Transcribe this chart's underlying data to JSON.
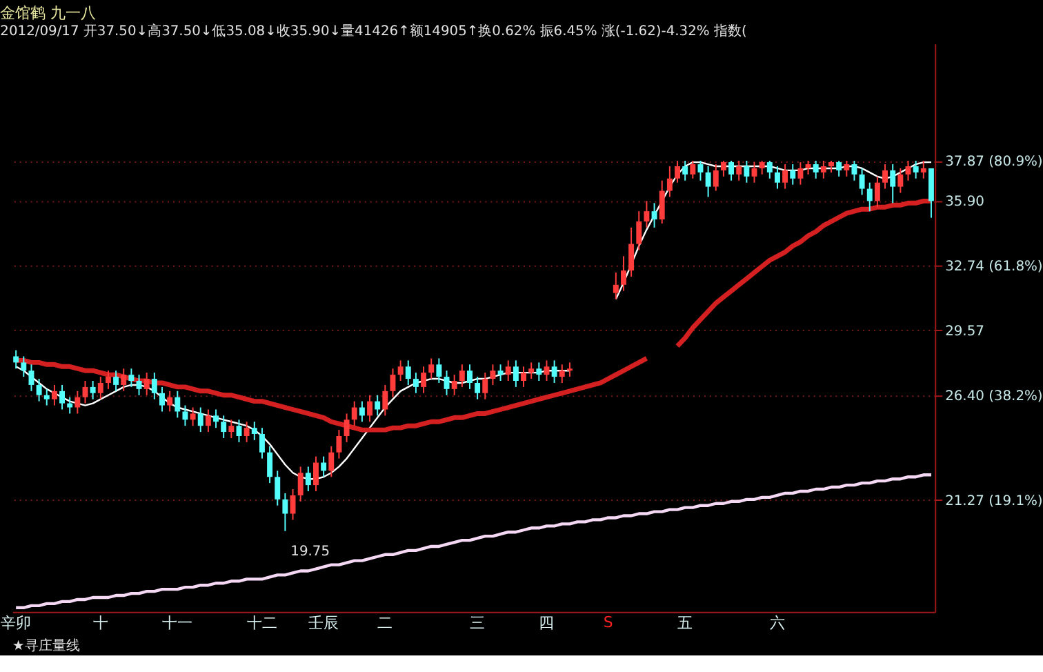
{
  "chart_data": {
    "type": "candlestick",
    "title": "金馆鹤 九一八",
    "subtitle": "2012/09/17 开37.50↓高37.50↓低35.08↓收35.90↓量41426↑额14905↑换0.62% 振6.45% 涨(-1.62)-4.32% 指数(",
    "categories": [
      "辛卯",
      null,
      null,
      null,
      null,
      null,
      null,
      null,
      null,
      null,
      null,
      "十",
      null,
      null,
      null,
      null,
      null,
      null,
      null,
      null,
      null,
      "十一",
      null,
      null,
      null,
      null,
      null,
      null,
      null,
      null,
      null,
      null,
      "十二",
      null,
      null,
      null,
      null,
      null,
      null,
      null,
      "壬辰",
      null,
      null,
      null,
      null,
      null,
      null,
      null,
      "二",
      null,
      null,
      null,
      null,
      null,
      null,
      null,
      null,
      null,
      null,
      null,
      "三",
      null,
      null,
      null,
      null,
      null,
      null,
      null,
      null,
      "四",
      null,
      null,
      null,
      null,
      null,
      null,
      null,
      null,
      null,
      null,
      null,
      null,
      null,
      null,
      null,
      null,
      null,
      "五",
      null,
      null,
      null,
      null,
      null,
      null,
      null,
      null,
      null,
      null,
      null,
      "六",
      null,
      null,
      null,
      null,
      null,
      null,
      null,
      null,
      null,
      null,
      null,
      null,
      null,
      null,
      null,
      null,
      null,
      null,
      null,
      null
    ],
    "ohlc": [
      [
        28.3,
        28.6,
        27.7,
        28.0
      ],
      [
        28.0,
        28.3,
        27.3,
        27.6
      ],
      [
        27.6,
        27.9,
        26.6,
        26.9
      ],
      [
        26.9,
        27.2,
        26.1,
        26.4
      ],
      [
        26.4,
        26.7,
        25.9,
        26.2
      ],
      [
        26.2,
        26.9,
        25.9,
        26.6
      ],
      [
        26.6,
        26.9,
        25.7,
        26.0
      ],
      [
        26.0,
        26.3,
        25.5,
        25.8
      ],
      [
        25.8,
        26.6,
        25.5,
        26.3
      ],
      [
        26.3,
        27.1,
        26.0,
        26.8
      ],
      [
        26.8,
        27.1,
        26.2,
        26.5
      ],
      [
        26.5,
        27.3,
        26.2,
        27.0
      ],
      [
        27.0,
        27.6,
        26.7,
        27.3
      ],
      [
        27.3,
        27.6,
        26.6,
        26.9
      ],
      [
        26.9,
        27.7,
        26.6,
        27.4
      ],
      [
        27.4,
        27.7,
        26.8,
        27.1
      ],
      [
        27.1,
        27.4,
        26.4,
        26.7
      ],
      [
        26.7,
        27.5,
        26.4,
        27.2
      ],
      [
        27.2,
        27.5,
        26.2,
        26.5
      ],
      [
        26.5,
        26.8,
        25.6,
        25.9
      ],
      [
        25.9,
        26.6,
        25.6,
        26.3
      ],
      [
        26.3,
        26.6,
        25.3,
        25.6
      ],
      [
        25.6,
        25.9,
        24.9,
        25.2
      ],
      [
        25.2,
        25.8,
        24.9,
        25.5
      ],
      [
        25.5,
        25.8,
        24.6,
        24.9
      ],
      [
        24.9,
        25.7,
        24.6,
        25.4
      ],
      [
        25.4,
        25.7,
        24.8,
        25.1
      ],
      [
        25.1,
        25.4,
        24.3,
        24.6
      ],
      [
        24.6,
        25.2,
        24.3,
        24.9
      ],
      [
        24.9,
        25.2,
        24.1,
        24.4
      ],
      [
        24.4,
        25.1,
        24.1,
        24.8
      ],
      [
        24.8,
        25.1,
        24.2,
        24.5
      ],
      [
        24.5,
        24.8,
        23.3,
        23.6
      ],
      [
        23.6,
        23.9,
        22.1,
        22.4
      ],
      [
        22.4,
        22.7,
        21.0,
        21.3
      ],
      [
        21.3,
        21.6,
        19.75,
        20.6
      ],
      [
        20.6,
        21.8,
        20.3,
        21.5
      ],
      [
        21.5,
        22.9,
        21.2,
        22.6
      ],
      [
        22.6,
        22.9,
        21.7,
        22.0
      ],
      [
        22.0,
        23.4,
        21.7,
        23.1
      ],
      [
        23.1,
        23.4,
        22.4,
        22.7
      ],
      [
        22.7,
        23.9,
        22.4,
        23.6
      ],
      [
        23.6,
        24.7,
        23.3,
        24.4
      ],
      [
        24.4,
        25.5,
        24.1,
        25.2
      ],
      [
        25.2,
        26.1,
        24.9,
        25.8
      ],
      [
        25.8,
        26.1,
        25.1,
        25.4
      ],
      [
        25.4,
        26.4,
        25.1,
        26.1
      ],
      [
        26.1,
        26.4,
        25.4,
        25.7
      ],
      [
        25.7,
        26.9,
        25.4,
        26.6
      ],
      [
        26.6,
        27.7,
        26.3,
        27.4
      ],
      [
        27.4,
        28.1,
        27.1,
        27.8
      ],
      [
        27.8,
        28.1,
        26.9,
        27.2
      ],
      [
        27.2,
        27.5,
        26.5,
        26.8
      ],
      [
        26.8,
        27.8,
        26.5,
        27.5
      ],
      [
        27.5,
        28.2,
        27.2,
        27.9
      ],
      [
        27.9,
        28.2,
        27.0,
        27.3
      ],
      [
        27.3,
        27.6,
        26.4,
        26.7
      ],
      [
        26.7,
        27.4,
        26.4,
        27.1
      ],
      [
        27.1,
        27.9,
        26.8,
        27.6
      ],
      [
        27.6,
        27.9,
        26.7,
        27.0
      ],
      [
        27.0,
        27.3,
        26.2,
        26.5
      ],
      [
        26.5,
        27.5,
        26.2,
        27.2
      ],
      [
        27.2,
        27.9,
        26.9,
        27.6
      ],
      [
        27.6,
        27.9,
        27.1,
        27.4
      ],
      [
        27.4,
        28.1,
        27.1,
        27.8
      ],
      [
        27.8,
        28.1,
        26.8,
        27.1
      ],
      [
        27.1,
        27.8,
        26.8,
        27.5
      ],
      [
        27.5,
        28.0,
        27.2,
        27.7
      ],
      [
        27.7,
        28.0,
        27.1,
        27.4
      ],
      [
        27.4,
        28.1,
        27.1,
        27.8
      ],
      [
        27.8,
        28.1,
        27.0,
        27.3
      ],
      [
        27.3,
        27.9,
        27.0,
        27.6
      ],
      [
        27.6,
        28.0,
        27.3,
        27.7
      ],
      null,
      null,
      null,
      null,
      null,
      [
        31.4,
        32.4,
        31.1,
        31.8
      ],
      [
        31.8,
        33.2,
        31.5,
        32.5
      ],
      [
        32.5,
        34.6,
        32.2,
        33.8
      ],
      [
        33.8,
        35.4,
        33.5,
        34.9
      ],
      [
        34.9,
        35.9,
        34.6,
        35.4
      ],
      [
        35.4,
        35.8,
        34.6,
        35.0
      ],
      [
        35.0,
        36.9,
        34.8,
        36.4
      ],
      [
        36.4,
        37.6,
        36.1,
        37.0
      ],
      [
        37.0,
        37.87,
        36.8,
        37.6
      ],
      [
        37.6,
        37.87,
        36.9,
        37.2
      ],
      [
        37.2,
        37.87,
        37.0,
        37.7
      ],
      [
        37.7,
        37.87,
        36.9,
        37.3
      ],
      [
        37.3,
        37.6,
        36.1,
        36.6
      ],
      [
        36.6,
        37.7,
        36.4,
        37.4
      ],
      [
        37.4,
        37.87,
        37.1,
        37.8
      ],
      [
        37.8,
        37.87,
        36.9,
        37.2
      ],
      [
        37.2,
        37.87,
        36.9,
        37.6
      ],
      [
        37.6,
        37.87,
        36.8,
        37.1
      ],
      [
        37.1,
        37.8,
        36.8,
        37.5
      ],
      [
        37.5,
        37.87,
        37.2,
        37.8
      ],
      [
        37.8,
        37.87,
        37.0,
        37.3
      ],
      [
        37.3,
        37.6,
        36.5,
        36.8
      ],
      [
        36.8,
        37.7,
        36.5,
        37.4
      ],
      [
        37.4,
        37.7,
        36.7,
        37.0
      ],
      [
        37.0,
        37.8,
        36.7,
        37.5
      ],
      [
        37.5,
        37.87,
        37.2,
        37.7
      ],
      [
        37.7,
        37.87,
        37.0,
        37.3
      ],
      [
        37.3,
        37.87,
        37.0,
        37.6
      ],
      [
        37.6,
        37.87,
        37.3,
        37.8
      ],
      [
        37.8,
        37.87,
        37.1,
        37.4
      ],
      [
        37.4,
        37.87,
        37.1,
        37.7
      ],
      [
        37.7,
        37.87,
        36.9,
        37.2
      ],
      [
        37.2,
        37.5,
        36.2,
        36.5
      ],
      [
        36.5,
        36.8,
        35.4,
        35.9
      ],
      [
        35.9,
        37.1,
        35.6,
        36.8
      ],
      [
        36.8,
        37.7,
        36.5,
        37.4
      ],
      [
        37.4,
        37.7,
        35.8,
        36.6
      ],
      [
        36.6,
        37.5,
        36.3,
        37.2
      ],
      [
        37.2,
        37.87,
        36.9,
        37.6
      ],
      [
        37.6,
        37.87,
        37.0,
        37.3
      ],
      [
        37.3,
        37.87,
        37.0,
        37.5
      ],
      [
        37.5,
        37.5,
        35.08,
        35.9
      ]
    ],
    "colors": [
      "#54fcfc",
      "#54fcfc",
      "#54fcfc",
      "#54fcfc",
      "#54fcfc",
      "#ff3c3c",
      "#54fcfc",
      "#54fcfc",
      "#ff3c3c",
      "#ff3c3c",
      "#54fcfc",
      "#ff3c3c",
      "#ff3c3c",
      "#54fcfc",
      "#ff3c3c",
      "#54fcfc",
      "#54fcfc",
      "#ff3c3c",
      "#54fcfc",
      "#54fcfc",
      "#ff3c3c",
      "#54fcfc",
      "#54fcfc",
      "#ff3c3c",
      "#54fcfc",
      "#ff3c3c",
      "#54fcfc",
      "#54fcfc",
      "#ff3c3c",
      "#54fcfc",
      "#ff3c3c",
      "#54fcfc",
      "#54fcfc",
      "#54fcfc",
      "#54fcfc",
      "#54fcfc",
      "#ff3c3c",
      "#ff3c3c",
      "#54fcfc",
      "#ff3c3c",
      "#54fcfc",
      "#ff3c3c",
      "#ff3c3c",
      "#ff3c3c",
      "#ff3c3c",
      "#54fcfc",
      "#ff3c3c",
      "#54fcfc",
      "#ff3c3c",
      "#ff3c3c",
      "#ff3c3c",
      "#54fcfc",
      "#54fcfc",
      "#ff3c3c",
      "#ff3c3c",
      "#54fcfc",
      "#54fcfc",
      "#ff3c3c",
      "#ff3c3c",
      "#54fcfc",
      "#54fcfc",
      "#ff3c3c",
      "#ff3c3c",
      "#54fcfc",
      "#ff3c3c",
      "#54fcfc",
      "#ff3c3c",
      "#ff3c3c",
      "#54fcfc",
      "#ff3c3c",
      "#54fcfc",
      "#ff3c3c",
      "#ff3c3c",
      null,
      null,
      null,
      null,
      null,
      "#ff3c3c",
      "#ff3c3c",
      "#ff3c3c",
      "#ff3c3c",
      "#ff3c3c",
      "#54fcfc",
      "#ff3c3c",
      "#ff3c3c",
      "#ff3c3c",
      "#54fcfc",
      "#ff3c3c",
      "#54fcfc",
      "#54fcfc",
      "#ff3c3c",
      "#ff3c3c",
      "#54fcfc",
      "#ff3c3c",
      "#54fcfc",
      "#ff3c3c",
      "#ff3c3c",
      "#54fcfc",
      "#54fcfc",
      "#ff3c3c",
      "#54fcfc",
      "#ff3c3c",
      "#ff3c3c",
      "#54fcfc",
      "#ff3c3c",
      "#ff3c3c",
      "#54fcfc",
      "#ff3c3c",
      "#54fcfc",
      "#54fcfc",
      "#54fcfc",
      "#ff3c3c",
      "#ff3c3c",
      "#54fcfc",
      "#ff3c3c",
      "#ff3c3c",
      "#54fcfc",
      "#ff3c3c",
      "#54fcfc"
    ],
    "series": [
      {
        "type": "line",
        "color": "#ffffff",
        "values": [
          27.8,
          27.6,
          27.3,
          27.0,
          26.7,
          26.5,
          26.3,
          26.1,
          26.0,
          25.9,
          26.0,
          26.2,
          26.4,
          26.6,
          26.8,
          26.9,
          26.9,
          26.8,
          26.6,
          26.3,
          26.0,
          25.8,
          25.7,
          25.6,
          25.5,
          25.4,
          25.3,
          25.2,
          25.1,
          25.0,
          24.9,
          24.7,
          24.4,
          24.0,
          23.5,
          23.0,
          22.6,
          22.4,
          22.3,
          22.3,
          22.4,
          22.6,
          22.9,
          23.3,
          23.8,
          24.3,
          24.8,
          25.3,
          25.8,
          26.2,
          26.6,
          26.8,
          27.0,
          27.1,
          27.2,
          27.2,
          27.1,
          27.0,
          27.0,
          27.1,
          27.2,
          27.2,
          27.3,
          27.4,
          27.5,
          27.5,
          27.5,
          27.5,
          27.5,
          27.6,
          27.6,
          27.6,
          27.6,
          null,
          null,
          null,
          null,
          null,
          31.1,
          31.9,
          32.8,
          33.7,
          34.5,
          35.2,
          35.9,
          36.6,
          37.2,
          37.6,
          37.8,
          37.8,
          37.7,
          37.6,
          37.6,
          37.6,
          37.6,
          37.6,
          37.6,
          37.6,
          37.6,
          37.5,
          37.4,
          37.4,
          37.4,
          37.5,
          37.5,
          37.5,
          37.5,
          37.5,
          37.6,
          37.6,
          37.5,
          37.3,
          37.1,
          37.0,
          37.1,
          37.3,
          37.5,
          37.7,
          37.8,
          37.8
        ]
      },
      {
        "type": "line",
        "color": "#d42020",
        "values": [
          28.1,
          28.1,
          28.0,
          28.0,
          27.9,
          27.9,
          27.8,
          27.8,
          27.7,
          27.6,
          27.6,
          27.5,
          27.4,
          27.4,
          27.3,
          27.2,
          27.1,
          27.1,
          27.0,
          27.0,
          26.9,
          26.8,
          26.8,
          26.7,
          26.6,
          26.6,
          26.5,
          26.4,
          26.4,
          26.3,
          26.2,
          26.1,
          26.1,
          26.0,
          25.9,
          25.8,
          25.7,
          25.6,
          25.5,
          25.4,
          25.3,
          25.1,
          25.0,
          24.9,
          24.8,
          24.7,
          24.7,
          24.7,
          24.7,
          24.8,
          24.8,
          24.9,
          24.9,
          25.0,
          25.1,
          25.1,
          25.2,
          25.3,
          25.3,
          25.4,
          25.5,
          25.5,
          25.6,
          25.7,
          25.8,
          25.9,
          26.0,
          26.1,
          26.2,
          26.3,
          26.4,
          26.5,
          26.6,
          26.7,
          26.8,
          26.9,
          27.0,
          27.2,
          27.4,
          27.6,
          27.8,
          28.0,
          28.2,
          null,
          null,
          null,
          28.8,
          29.2,
          29.7,
          30.1,
          30.5,
          30.9,
          31.2,
          31.5,
          31.8,
          32.1,
          32.4,
          32.7,
          33.0,
          33.2,
          33.4,
          33.7,
          33.9,
          34.2,
          34.4,
          34.7,
          34.9,
          35.1,
          35.3,
          35.4,
          35.5,
          35.5,
          35.6,
          35.6,
          35.7,
          35.7,
          35.8,
          35.8,
          35.9,
          35.9
        ]
      },
      {
        "type": "line",
        "color": "#f4d8f4",
        "values": [
          16.0,
          16.0,
          16.1,
          16.1,
          16.2,
          16.2,
          16.3,
          16.3,
          16.4,
          16.4,
          16.5,
          16.5,
          16.5,
          16.6,
          16.6,
          16.7,
          16.7,
          16.8,
          16.8,
          16.9,
          16.9,
          16.9,
          17.0,
          17.0,
          17.1,
          17.1,
          17.2,
          17.2,
          17.3,
          17.3,
          17.4,
          17.4,
          17.4,
          17.5,
          17.6,
          17.6,
          17.7,
          17.8,
          17.8,
          17.9,
          18.0,
          18.1,
          18.1,
          18.2,
          18.3,
          18.3,
          18.4,
          18.5,
          18.6,
          18.6,
          18.7,
          18.8,
          18.8,
          18.9,
          19.0,
          19.0,
          19.1,
          19.2,
          19.3,
          19.3,
          19.4,
          19.5,
          19.5,
          19.6,
          19.7,
          19.7,
          19.8,
          19.9,
          19.9,
          20.0,
          20.0,
          20.1,
          20.1,
          20.2,
          20.2,
          20.3,
          20.3,
          20.4,
          20.4,
          20.5,
          20.5,
          20.6,
          20.6,
          20.7,
          20.7,
          20.8,
          20.8,
          20.9,
          20.9,
          21.0,
          21.0,
          21.1,
          21.1,
          21.2,
          21.2,
          21.3,
          21.3,
          21.4,
          21.4,
          21.5,
          21.6,
          21.6,
          21.7,
          21.7,
          21.8,
          21.8,
          21.9,
          21.9,
          22.0,
          22.0,
          22.1,
          22.1,
          22.2,
          22.2,
          22.3,
          22.3,
          22.4,
          22.4,
          22.5,
          22.5
        ]
      }
    ],
    "ylim": [
      15.8,
      43.6
    ],
    "yticks": [
      {
        "value": 37.87,
        "label": "37.87\n(80.9%)"
      },
      {
        "value": 35.9,
        "label": "35.90"
      },
      {
        "value": 32.74,
        "label": "32.74\n(61.8%)"
      },
      {
        "value": 29.57,
        "label": "29.57"
      },
      {
        "value": 26.4,
        "label": "26.40\n(38.2%)"
      },
      {
        "value": 21.27,
        "label": "21.27\n(19.1%)"
      }
    ],
    "grid": "y",
    "annotations": [
      "19.75",
      "S",
      "★寻庄量线"
    ]
  }
}
